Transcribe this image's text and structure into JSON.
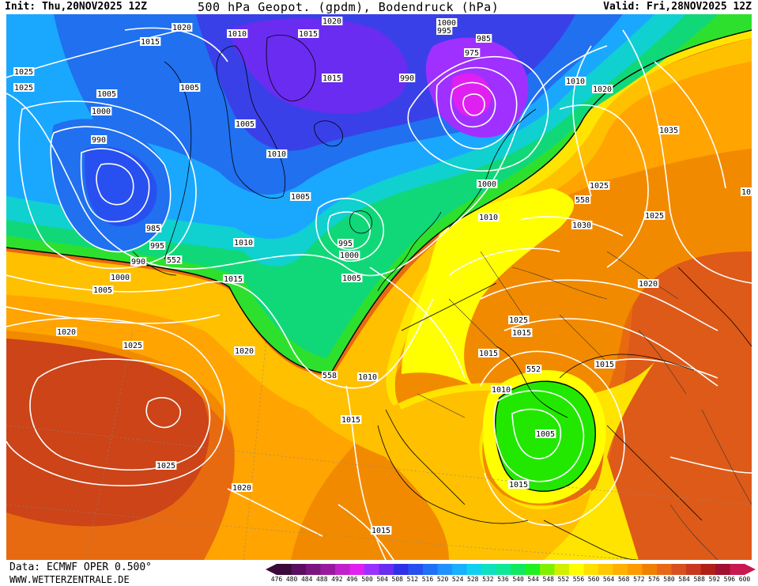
{
  "header": {
    "init": "Init: Thu,20NOV2025 12Z",
    "title": "500 hPa Geopot. (gpdm), Bodendruck (hPa)",
    "valid": "Valid: Fri,28NOV2025 12Z"
  },
  "footer": {
    "source": "Data: ECMWF OPER 0.500°",
    "site": "WWW.WETTERZENTRALE.DE"
  },
  "colorscale": {
    "levels": [
      "476",
      "480",
      "484",
      "488",
      "492",
      "496",
      "500",
      "504",
      "508",
      "512",
      "516",
      "520",
      "524",
      "528",
      "532",
      "536",
      "540",
      "544",
      "548",
      "552",
      "556",
      "560",
      "564",
      "568",
      "572",
      "576",
      "580",
      "584",
      "588",
      "592",
      "596",
      "600"
    ],
    "colors": [
      "#3a0a3a",
      "#5a0f5f",
      "#7a1480",
      "#9a18a0",
      "#c020c8",
      "#e020f0",
      "#9a30ff",
      "#6a2cf0",
      "#3030e8",
      "#2850f0",
      "#2070f8",
      "#2090ff",
      "#18b0ff",
      "#10d0f0",
      "#10e0c0",
      "#10e898",
      "#10e860",
      "#20f020",
      "#80f000",
      "#d0f000",
      "#ffff00",
      "#ffe000",
      "#ffc800",
      "#ffb000",
      "#ff9a00",
      "#f08000",
      "#e86818",
      "#d85020",
      "#c83820",
      "#b02018",
      "#a01030",
      "#c81850"
    ]
  },
  "pressure_labels": [
    {
      "text": "1025"
    },
    {
      "text": "1020"
    },
    {
      "text": "1015"
    },
    {
      "text": "1010"
    },
    {
      "text": "1015"
    },
    {
      "text": "1020"
    },
    {
      "text": "1000"
    },
    {
      "text": "995"
    },
    {
      "text": "985"
    },
    {
      "text": "975"
    },
    {
      "text": "1025"
    },
    {
      "text": "1005"
    },
    {
      "text": "1005"
    },
    {
      "text": "1000"
    },
    {
      "text": "1015"
    },
    {
      "text": "990"
    },
    {
      "text": "1010"
    },
    {
      "text": "1020"
    },
    {
      "text": "990"
    },
    {
      "text": "1005"
    },
    {
      "text": "1010"
    },
    {
      "text": "1035"
    },
    {
      "text": "1005"
    },
    {
      "text": "1000"
    },
    {
      "text": "1025"
    },
    {
      "text": "1025"
    },
    {
      "text": "558"
    },
    {
      "text": "985"
    },
    {
      "text": "995"
    },
    {
      "text": "1010"
    },
    {
      "text": "1030"
    },
    {
      "text": "990"
    },
    {
      "text": "995"
    },
    {
      "text": "552"
    },
    {
      "text": "1010"
    },
    {
      "text": "1000"
    },
    {
      "text": "1000"
    },
    {
      "text": "1005"
    },
    {
      "text": "1015"
    },
    {
      "text": "1005"
    },
    {
      "text": "1025"
    },
    {
      "text": "1020"
    },
    {
      "text": "1020"
    },
    {
      "text": "1025"
    },
    {
      "text": "1020"
    },
    {
      "text": "1025"
    },
    {
      "text": "1015"
    },
    {
      "text": "1015"
    },
    {
      "text": "552"
    },
    {
      "text": "1010"
    },
    {
      "text": "558"
    },
    {
      "text": "1010"
    },
    {
      "text": "1015"
    },
    {
      "text": "1005"
    },
    {
      "text": "1025"
    },
    {
      "text": "1020"
    },
    {
      "text": "1015"
    },
    {
      "text": "1015"
    },
    {
      "text": "1015"
    }
  ]
}
